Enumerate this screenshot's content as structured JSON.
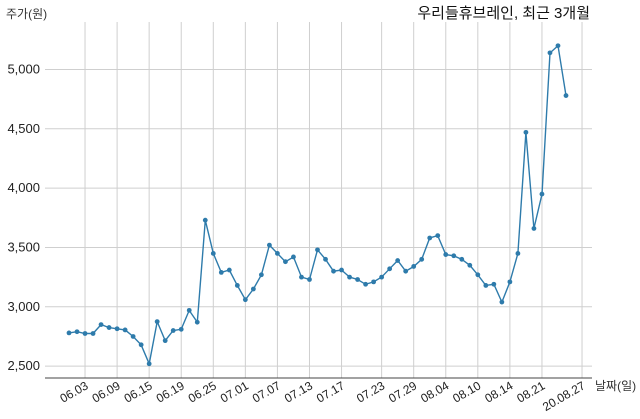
{
  "chart_data": {
    "type": "line",
    "title": "우리들휴브레인, 최근 3개월",
    "ylabel": "주가(원)",
    "xlabel": "날짜(일)",
    "ylim": [
      2400,
      5400
    ],
    "yticks": [
      2500,
      3000,
      3500,
      4000,
      4500,
      5000
    ],
    "ytick_labels": [
      "2,500",
      "3,000",
      "3,500",
      "4,000",
      "4,500",
      "5,000"
    ],
    "xtick_labels": [
      "06.03",
      "06.09",
      "06.15",
      "06.19",
      "06.25",
      "07.01",
      "07.07",
      "07.13",
      "07.17",
      "07.23",
      "07.29",
      "08.04",
      "08.10",
      "08.14",
      "08.21",
      "20.08.27"
    ],
    "xtick_indices": [
      2,
      6,
      10,
      14,
      18,
      22,
      26,
      30,
      34,
      39,
      43,
      47,
      51,
      55,
      59,
      64
    ],
    "grid": true,
    "series_color": "#2e7bab",
    "values": [
      2780,
      2790,
      2775,
      2775,
      2850,
      2825,
      2815,
      2805,
      2750,
      2680,
      2520,
      2875,
      2715,
      2800,
      2810,
      2970,
      2870,
      3730,
      3450,
      3290,
      3310,
      3180,
      3060,
      3150,
      3270,
      3520,
      3450,
      3380,
      3420,
      3250,
      3230,
      3480,
      3400,
      3300,
      3310,
      3250,
      3230,
      3190,
      3210,
      3250,
      3320,
      3390,
      3300,
      3340,
      3400,
      3580,
      3600,
      3440,
      3430,
      3400,
      3350,
      3270,
      3180,
      3190,
      3040,
      3210,
      3450,
      4470,
      3660,
      3950,
      5140,
      5200,
      4780
    ]
  }
}
